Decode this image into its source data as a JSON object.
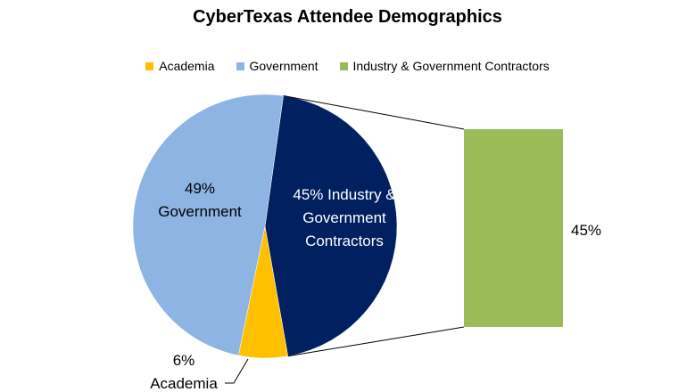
{
  "chart_data": {
    "type": "pie",
    "title": "CyberTexas Attendee Demographics",
    "legend": {
      "placement": "top",
      "entries": [
        "Academia",
        "Government",
        "Industry & Government Contractors"
      ]
    },
    "slices": [
      {
        "name": "Academia",
        "value": 6,
        "percent_label": "6%",
        "name_label": "Academia",
        "color": "#FFC000"
      },
      {
        "name": "Government",
        "value": 49,
        "percent_label": "49%",
        "name_label": "Government",
        "color": "#8EB4E3"
      },
      {
        "name": "Industry & Government Contractors",
        "value": 45,
        "label_lines": [
          "45% Industry &",
          "Government",
          "Contractors"
        ],
        "color": "#002060"
      }
    ],
    "breakout_bar": {
      "value": 45,
      "label": "45%",
      "color": "#9BBB59"
    }
  }
}
